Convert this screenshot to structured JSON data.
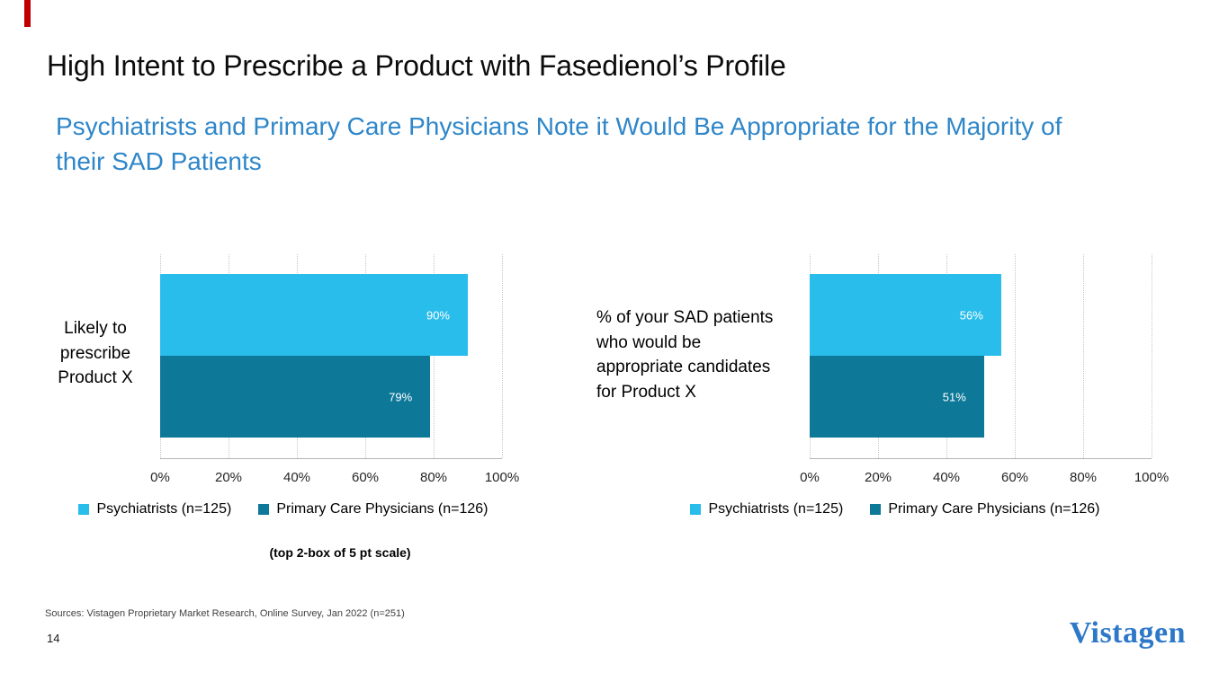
{
  "slide": {
    "title": "High Intent to Prescribe a Product with Fasedienol’s Profile",
    "subtitle": "Psychiatrists and Primary Care Physicians Note it Would Be Appropriate for the Majority of\ntheir SAD Patients",
    "footnote": "(top 2-box of 5 pt scale)",
    "sources": "Sources: Vistagen Proprietary Market Research, Online Survey, Jan 2022 (n=251)",
    "page_number": "14",
    "logo_text": "Vistagen"
  },
  "colors": {
    "accent_red": "#C00000",
    "subtitle_blue": "#2E86C9",
    "logo_blue": "#2E78C8",
    "psychiatrists_blue": "#29BDEB",
    "pcp_teal": "#0E7899"
  },
  "chart_data": [
    {
      "type": "bar",
      "orientation": "horizontal",
      "category_label": "Likely to\nprescribe\nProduct X",
      "series": [
        {
          "name": "Psychiatrists (n=125)",
          "value": 90,
          "label": "90%",
          "color": "#29BDEB"
        },
        {
          "name": "Primary Care Physicians (n=126)",
          "value": 79,
          "label": "79%",
          "color": "#0E7899"
        }
      ],
      "x_ticks": [
        "0%",
        "20%",
        "40%",
        "60%",
        "80%",
        "100%"
      ],
      "xlim": [
        0,
        100
      ],
      "grid": "dotted-vertical",
      "legend": [
        "Psychiatrists (n=125)",
        "Primary Care Physicians (n=126)"
      ],
      "legend_position": "bottom"
    },
    {
      "type": "bar",
      "orientation": "horizontal",
      "category_label": "% of your SAD patients\nwho would be\nappropriate candidates\nfor Product X",
      "series": [
        {
          "name": "Psychiatrists (n=125)",
          "value": 56,
          "label": "56%",
          "color": "#29BDEB"
        },
        {
          "name": "Primary Care Physicians (n=126)",
          "value": 51,
          "label": "51%",
          "color": "#0E7899"
        }
      ],
      "x_ticks": [
        "0%",
        "20%",
        "40%",
        "60%",
        "80%",
        "100%"
      ],
      "xlim": [
        0,
        100
      ],
      "grid": "dotted-vertical",
      "legend": [
        "Psychiatrists (n=125)",
        "Primary Care Physicians (n=126)"
      ],
      "legend_position": "bottom"
    }
  ]
}
